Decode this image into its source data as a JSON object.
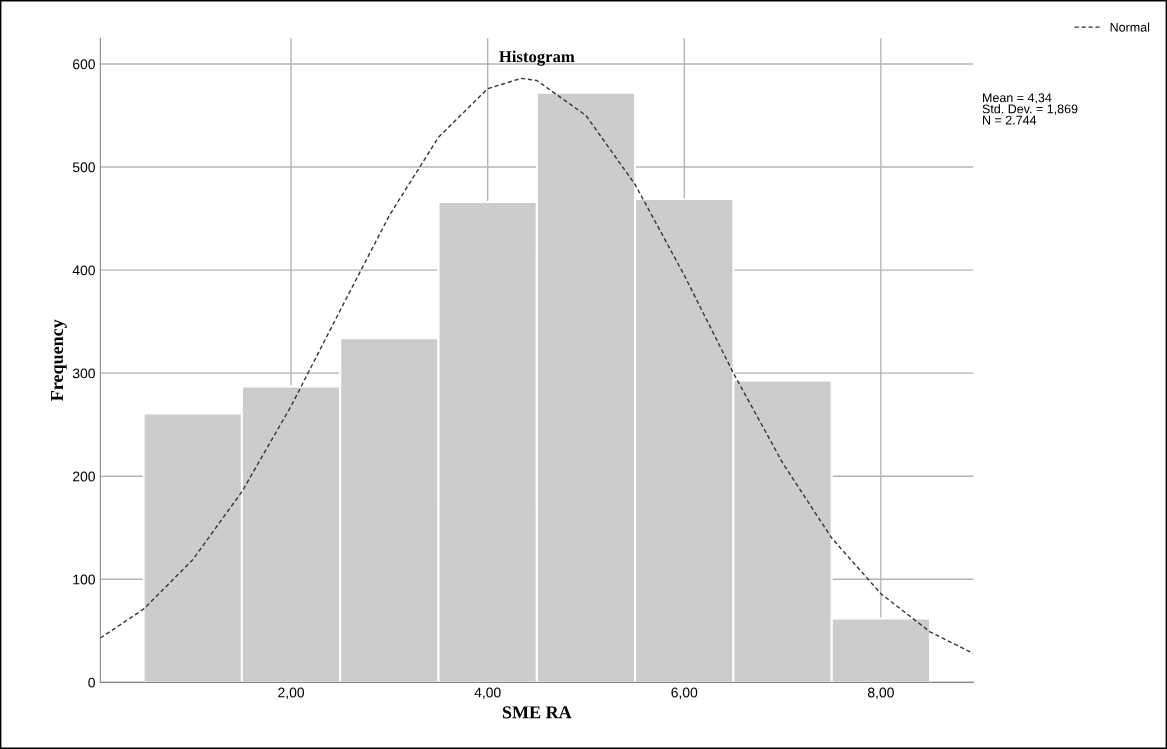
{
  "chart_data": {
    "type": "histogram",
    "title": "Histogram",
    "xlabel": "SME RA",
    "ylabel": "Frequency",
    "bins": [
      0.5,
      1.5,
      2.5,
      3.5,
      4.5,
      5.5,
      6.5,
      7.5,
      8.5
    ],
    "values": [
      261,
      287,
      334,
      466,
      572,
      469,
      293,
      62
    ],
    "color": "#cccccc",
    "series": [
      {
        "name": "Normal",
        "type": "line",
        "color": "#333333",
        "line_style": "dashed",
        "x": [
          0.06,
          0.5,
          1.0,
          1.5,
          2.0,
          2.5,
          3.0,
          3.5,
          4.0,
          4.34,
          4.5,
          5.0,
          5.5,
          6.0,
          6.5,
          7.0,
          7.5,
          8.0,
          8.5,
          8.94
        ],
        "values": [
          43,
          71,
          119,
          185,
          268,
          361,
          453,
          529,
          576,
          586,
          584,
          550,
          483,
          395,
          300,
          213,
          140,
          86,
          49,
          28
        ]
      }
    ],
    "xlim": [
      0.06,
      8.94
    ],
    "ylim": [
      0,
      625
    ],
    "xticks": [
      {
        "value": 2,
        "label": "2,00"
      },
      {
        "value": 4,
        "label": "4,00"
      },
      {
        "value": 6,
        "label": "6,00"
      },
      {
        "value": 8,
        "label": "8,00"
      }
    ],
    "yticks": [
      0,
      100,
      200,
      300,
      400,
      500,
      600
    ],
    "grid": true,
    "legend": "top right",
    "annotations": [
      "Mean = 4,34\nStd. Dev. = 1,869\nN = 2.744"
    ]
  }
}
